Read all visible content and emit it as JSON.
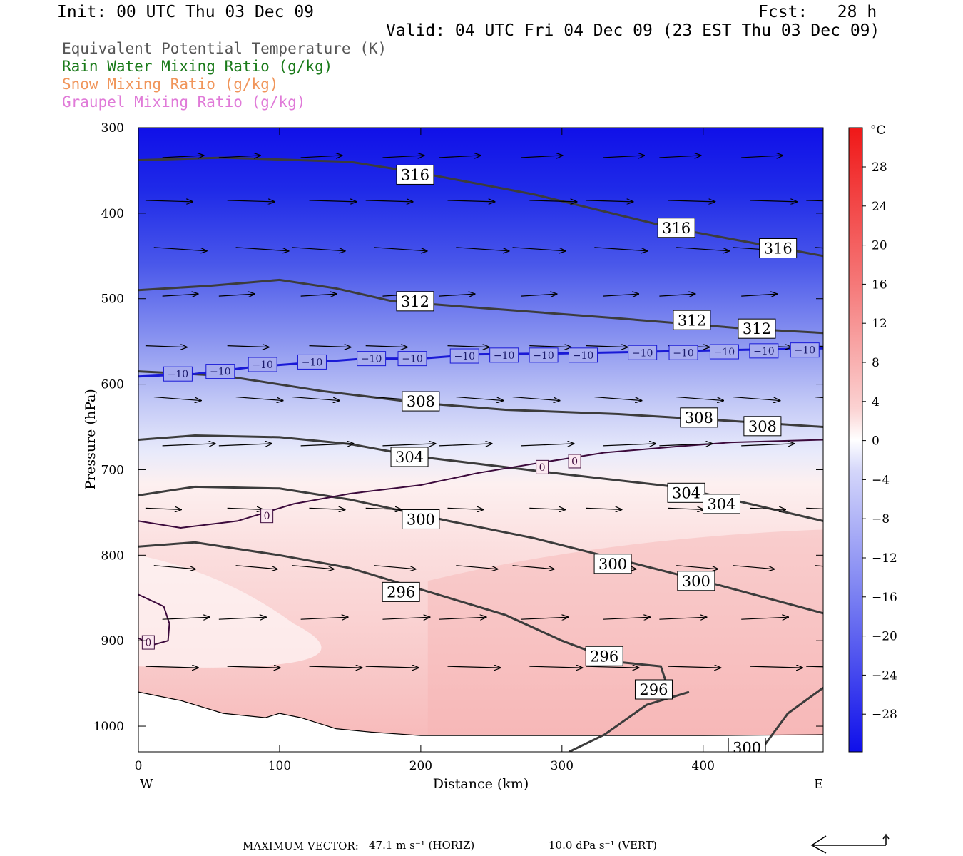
{
  "header": {
    "init": "Init: 00 UTC Thu 03 Dec 09",
    "fcst": "Fcst:   28 h",
    "valid": "Valid: 04 UTC Fri 04 Dec 09 (23 EST Thu 03 Dec 09)"
  },
  "legend": [
    {
      "text": "Equivalent Potential Temperature (K)",
      "color": "#555555"
    },
    {
      "text": "Rain Water Mixing Ratio (g/kg)",
      "color": "#1a7a1a"
    },
    {
      "text": "Snow Mixing Ratio (g/kg)",
      "color": "#f0955a"
    },
    {
      "text": "Graupel Mixing Ratio (g/kg)",
      "color": "#e07ad8"
    }
  ],
  "chart_data": {
    "type": "heatmap",
    "xlabel": "Distance (km)",
    "ylabel": "Pressure (hPa)",
    "xlim": [
      0,
      485
    ],
    "ylim": [
      1030,
      300
    ],
    "x_ticks": [
      0,
      100,
      200,
      300,
      400
    ],
    "y_ticks": [
      300,
      400,
      500,
      600,
      700,
      800,
      900,
      1000
    ],
    "x_end_labels": {
      "left": "W",
      "right": "E"
    },
    "colorbar": {
      "unit": "°C",
      "ticks": [
        "28",
        "24",
        "20",
        "16",
        "12",
        "8",
        "4",
        "0",
        "−4",
        "−8",
        "−12",
        "−16",
        "−20",
        "−24",
        "−28"
      ]
    },
    "theta_e_contours": [
      {
        "label": "316",
        "points": [
          [
            0,
            338
          ],
          [
            60,
            335
          ],
          [
            150,
            340
          ],
          [
            200,
            353
          ],
          [
            280,
            378
          ],
          [
            380,
            418
          ],
          [
            485,
            450
          ]
        ],
        "labels_at": [
          [
            196,
            355
          ],
          [
            381,
            417
          ],
          [
            453,
            441
          ]
        ]
      },
      {
        "label": "312",
        "points": [
          [
            0,
            490
          ],
          [
            50,
            485
          ],
          [
            100,
            478
          ],
          [
            140,
            488
          ],
          [
            180,
            503
          ],
          [
            260,
            513
          ],
          [
            340,
            523
          ],
          [
            430,
            535
          ],
          [
            485,
            540
          ]
        ],
        "labels_at": [
          [
            196,
            503
          ],
          [
            392,
            525
          ],
          [
            438,
            535
          ]
        ]
      },
      {
        "label": "308",
        "points": [
          [
            0,
            585
          ],
          [
            60,
            590
          ],
          [
            130,
            608
          ],
          [
            200,
            622
          ],
          [
            260,
            630
          ],
          [
            340,
            635
          ],
          [
            420,
            643
          ],
          [
            485,
            650
          ]
        ],
        "labels_at": [
          [
            200,
            620
          ],
          [
            397,
            639
          ],
          [
            442,
            649
          ]
        ]
      },
      {
        "label": "304",
        "points": [
          [
            0,
            665
          ],
          [
            40,
            660
          ],
          [
            100,
            662
          ],
          [
            150,
            670
          ],
          [
            200,
            685
          ],
          [
            300,
            705
          ],
          [
            380,
            720
          ],
          [
            420,
            735
          ],
          [
            485,
            760
          ]
        ],
        "labels_at": [
          [
            192,
            685
          ],
          [
            388,
            727
          ],
          [
            413,
            740
          ]
        ]
      },
      {
        "label": "300",
        "points": [
          [
            0,
            730
          ],
          [
            40,
            720
          ],
          [
            100,
            722
          ],
          [
            150,
            735
          ],
          [
            220,
            760
          ],
          [
            280,
            780
          ],
          [
            340,
            805
          ],
          [
            400,
            830
          ],
          [
            485,
            868
          ]
        ],
        "labels_at": [
          [
            200,
            758
          ],
          [
            336,
            810
          ],
          [
            395,
            830
          ]
        ]
      },
      {
        "label": "296",
        "points": [
          [
            0,
            790
          ],
          [
            40,
            785
          ],
          [
            100,
            800
          ],
          [
            150,
            815
          ],
          [
            200,
            840
          ],
          [
            260,
            870
          ],
          [
            300,
            900
          ],
          [
            340,
            925
          ],
          [
            370,
            930
          ],
          [
            375,
            955
          ]
        ],
        "labels_at": [
          [
            186,
            843
          ],
          [
            330,
            918
          ],
          [
            365,
            957
          ]
        ]
      },
      {
        "label": "300",
        "points": [
          [
            305,
            1030
          ],
          [
            330,
            1010
          ],
          [
            360,
            975
          ],
          [
            390,
            960
          ]
        ],
        "labels_at": []
      },
      {
        "label": "300",
        "points": [
          [
            440,
            1030
          ],
          [
            460,
            985
          ],
          [
            485,
            955
          ]
        ],
        "labels_at": [
          [
            431,
            1025
          ]
        ]
      }
    ],
    "isotherms": [
      {
        "label": "−10",
        "points": [
          [
            0,
            591
          ],
          [
            40,
            588
          ],
          [
            80,
            580
          ],
          [
            120,
            575
          ],
          [
            160,
            570
          ],
          [
            200,
            570
          ],
          [
            240,
            565
          ],
          [
            300,
            564
          ],
          [
            360,
            562
          ],
          [
            420,
            560
          ],
          [
            485,
            558
          ]
        ],
        "labels_at": [
          [
            28,
            588
          ],
          [
            58,
            585
          ],
          [
            88,
            577
          ],
          [
            123,
            574
          ],
          [
            165,
            570
          ],
          [
            194,
            570
          ],
          [
            231,
            567
          ],
          [
            259,
            566
          ],
          [
            287,
            566
          ],
          [
            315,
            566
          ],
          [
            357,
            563
          ],
          [
            386,
            563
          ],
          [
            415,
            562
          ],
          [
            443,
            561
          ],
          [
            472,
            560
          ]
        ]
      },
      {
        "label": "0",
        "points": [
          [
            0,
            760
          ],
          [
            30,
            768
          ],
          [
            70,
            760
          ],
          [
            110,
            740
          ],
          [
            150,
            728
          ],
          [
            200,
            718
          ],
          [
            240,
            704
          ],
          [
            280,
            693
          ],
          [
            330,
            680
          ],
          [
            380,
            673
          ],
          [
            420,
            668
          ],
          [
            485,
            665
          ]
        ],
        "labels_at": [
          [
            91,
            754
          ],
          [
            286,
            697
          ],
          [
            309,
            690
          ]
        ]
      },
      {
        "label": "0",
        "points": [
          [
            0,
            846
          ],
          [
            18,
            860
          ],
          [
            22,
            880
          ],
          [
            21,
            900
          ],
          [
            10,
            905
          ],
          [
            0,
            897
          ]
        ],
        "labels_at": [
          [
            7,
            902
          ]
        ]
      }
    ],
    "surface_line": [
      [
        0,
        960
      ],
      [
        30,
        970
      ],
      [
        60,
        985
      ],
      [
        90,
        990
      ],
      [
        100,
        985
      ],
      [
        115,
        990
      ],
      [
        140,
        1003
      ],
      [
        165,
        1007
      ],
      [
        200,
        1011
      ],
      [
        260,
        1011
      ],
      [
        330,
        1011
      ],
      [
        400,
        1011
      ],
      [
        485,
        1010
      ]
    ],
    "vector_scale": {
      "text": "MAXIMUM VECTOR:  47.1 m s",
      "horiz": "47.1 m s⁻¹ (HORIZ)",
      "vert": "10.0 dPa s⁻¹ (VERT)"
    }
  },
  "footer": {
    "max_label": "MAXIMUM VECTOR:",
    "horiz": "47.1 m s⁻¹ (HORIZ)",
    "vert": "10.0 dPa s⁻¹ (VERT)"
  }
}
